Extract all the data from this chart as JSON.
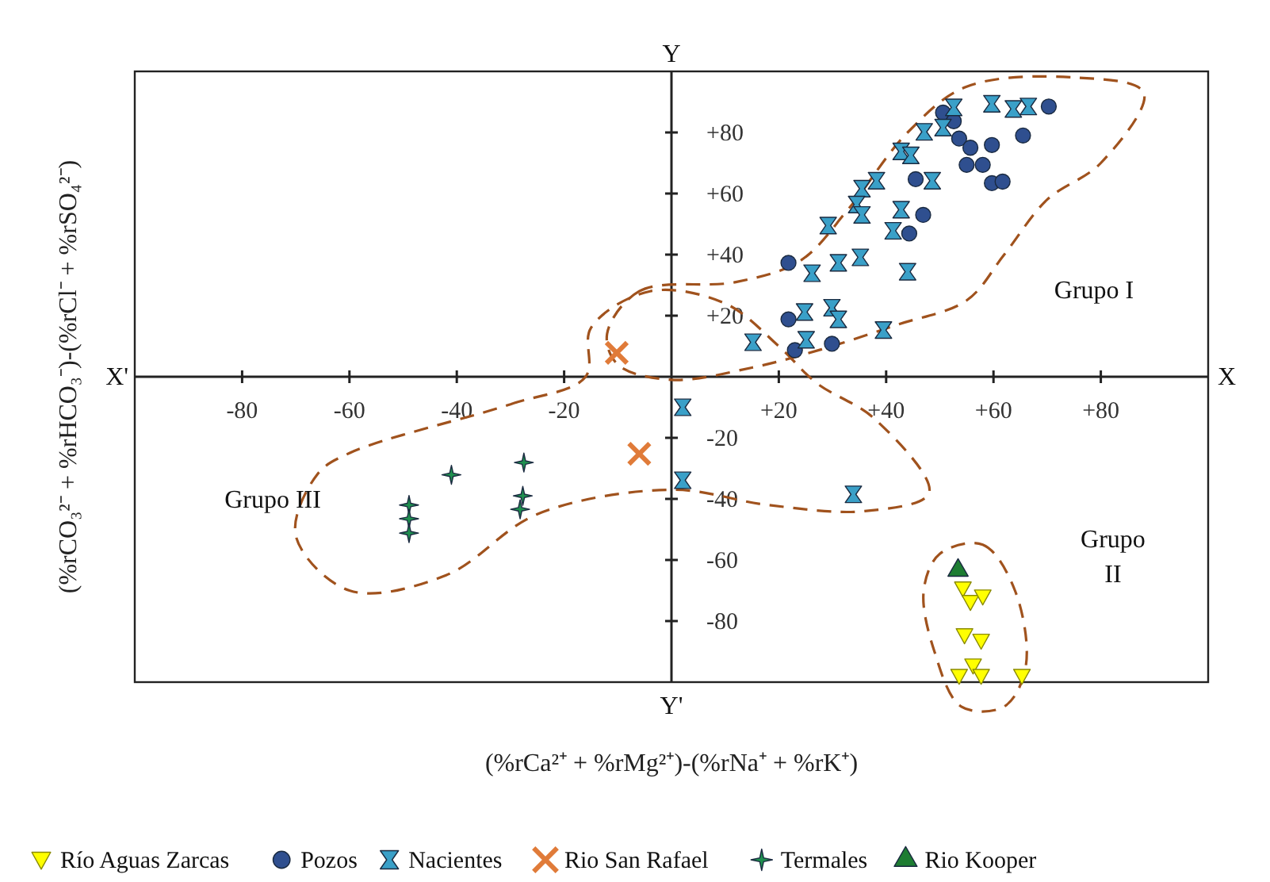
{
  "chart_data": {
    "type": "scatter",
    "xlabel": "(%rCa²⁺ + %rMg²⁺)-(%rNa⁺ + %rK⁺)",
    "ylabel": "(%rCO₃²⁻ + %rHCO₃⁻)-(%rCl⁻ + %rSO₄²⁻)",
    "xlim": [
      -100,
      100
    ],
    "ylim": [
      -100,
      100
    ],
    "xticks": [
      {
        "value": -80,
        "label": "-80"
      },
      {
        "value": -60,
        "label": "-60"
      },
      {
        "value": -40,
        "label": "-40"
      },
      {
        "value": -20,
        "label": "-20"
      },
      {
        "value": 20,
        "label": "+20"
      },
      {
        "value": 40,
        "label": "+40"
      },
      {
        "value": 60,
        "label": "+60"
      },
      {
        "value": 80,
        "label": "+80"
      }
    ],
    "yticks": [
      {
        "value": -80,
        "label": "-80"
      },
      {
        "value": -60,
        "label": "-60"
      },
      {
        "value": -40,
        "label": "-40"
      },
      {
        "value": -20,
        "label": "-20"
      },
      {
        "value": 20,
        "label": "+20"
      },
      {
        "value": 40,
        "label": "+40"
      },
      {
        "value": 60,
        "label": "+60"
      },
      {
        "value": 80,
        "label": "+80"
      }
    ],
    "grid": false,
    "legend": "bottom",
    "series": [
      {
        "name": "Río Aguas Zarcas",
        "color": "#ffff00",
        "marker": "triangle-down",
        "x": [
          54.3,
          55.7,
          58,
          54.6,
          57.7,
          56.2,
          53.6,
          57.7,
          65.3
        ],
        "values": [
          -69.4,
          -73.8,
          -72,
          -84.7,
          -86.5,
          -94.6,
          -98,
          -98,
          -98
        ]
      },
      {
        "name": "Pozos",
        "color": "#2f4f8f",
        "marker": "circle",
        "x": [
          50.6,
          52.6,
          53.6,
          55.7,
          55,
          58,
          59.7,
          59.7,
          61.7,
          65.5,
          70.3,
          45.5,
          46.9,
          44.3,
          21.8,
          21.8,
          23,
          29.9
        ],
        "values": [
          86.5,
          83.7,
          78,
          75,
          69.4,
          69.4,
          75.9,
          63.4,
          63.9,
          79,
          88.5,
          64.7,
          53,
          46.9,
          37.3,
          18.8,
          8.7,
          10.8
        ]
      },
      {
        "name": "Nacientes",
        "color": "#3aa0c8",
        "x": [
          59.7,
          63.7,
          66.5,
          52.6,
          50.6,
          47.1,
          42.8,
          44.6,
          48.6,
          38.2,
          35.5,
          34.5,
          35.5,
          42.8,
          41.3,
          29.2,
          35.2,
          31.1,
          26.2,
          44,
          24.8,
          29.9,
          31.1,
          39.5,
          15.2,
          25.1,
          2.1,
          2.1,
          33.9
        ],
        "values": [
          89.4,
          87.7,
          88.5,
          88.2,
          81.6,
          80.2,
          73.8,
          72.5,
          64.2,
          64.2,
          61.6,
          56.4,
          53,
          54.7,
          47.8,
          49.5,
          39.1,
          37.3,
          33.9,
          34.4,
          21.2,
          22.6,
          18.8,
          15.3,
          11.3,
          12.1,
          -10,
          -33.9,
          -38.5
        ]
      },
      {
        "name": "Rio San Rafael",
        "color": "#e07b39",
        "marker": "cross",
        "x": [
          -10.2,
          -6
        ],
        "values": [
          7.8,
          -25.2
        ]
      },
      {
        "name": "Termales",
        "color": "#1f8f4f",
        "marker": "star",
        "x": [
          -27.5,
          -41,
          -27.7,
          -28.2,
          -48.9,
          -48.9,
          -48.9
        ],
        "values": [
          -28.1,
          -32.1,
          -39,
          -43.4,
          -42,
          -46.5,
          -51.2
        ]
      },
      {
        "name": "Rio Kooper",
        "color": "#1e7d32",
        "marker": "triangle",
        "x": [
          53.4
        ],
        "values": [
          -63.4
        ]
      }
    ],
    "annotations": [
      "X'",
      "X",
      "Y",
      "Y'",
      "Grupo I",
      "Grupo\nII",
      "Grupo III"
    ]
  }
}
